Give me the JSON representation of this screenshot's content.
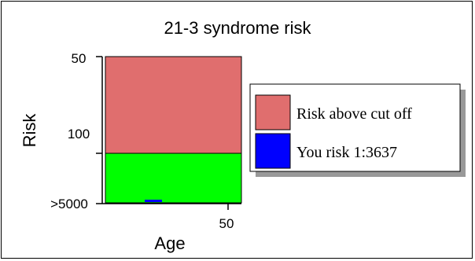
{
  "chart_data": {
    "type": "bar",
    "title": "21-3 syndrome risk",
    "xlabel": "Age",
    "ylabel": "Risk",
    "x_ticks": [
      "50"
    ],
    "y_ticks": [
      "50",
      "100",
      ">5000"
    ],
    "bands": [
      {
        "name": "Risk above cut off",
        "from": "100",
        "to": "50",
        "color": "#e06e6e"
      },
      {
        "name": "",
        "from": ">5000",
        "to": "100",
        "color": "#00ff00"
      }
    ],
    "series": [
      {
        "name": "You risk 1:3637",
        "value": 3637,
        "color": "#0000ff"
      }
    ],
    "legend": {
      "placement": "right",
      "entries": [
        {
          "label": "Risk above cut off",
          "color": "#e06e6e"
        },
        {
          "label": "You risk 1:3637",
          "color": "#0000ff"
        }
      ]
    },
    "grid": false
  }
}
